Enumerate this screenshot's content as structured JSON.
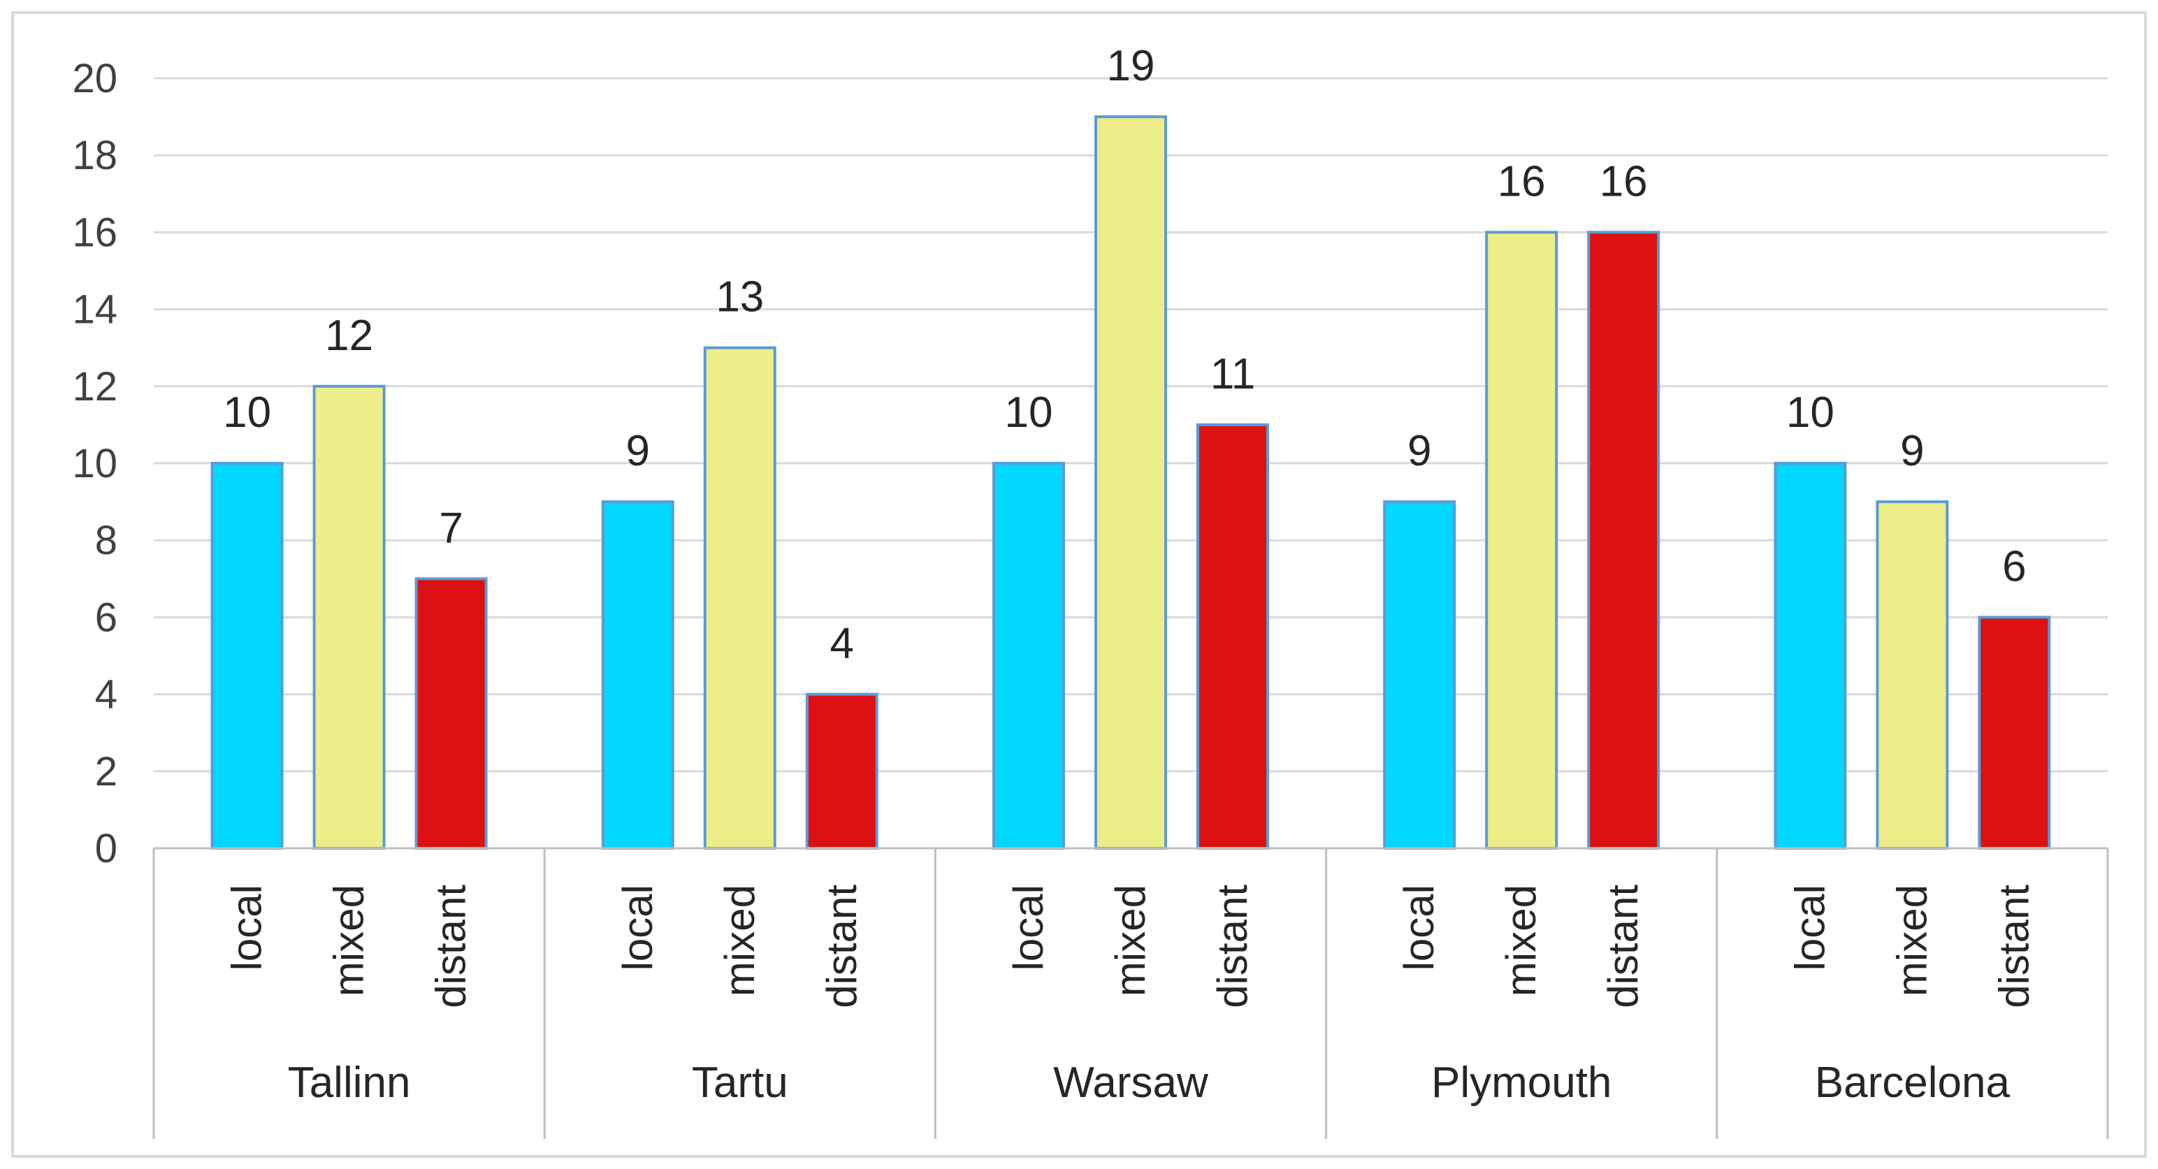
{
  "chart_data": {
    "type": "bar",
    "title": "",
    "xlabel": "",
    "ylabel": "",
    "ylim": [
      0,
      20
    ],
    "yticks": [
      0,
      2,
      4,
      6,
      8,
      10,
      12,
      14,
      16,
      18,
      20
    ],
    "grid": true,
    "legend": "none",
    "groups": [
      {
        "name": "Tallinn",
        "bars": [
          {
            "label": "local",
            "value": 10,
            "color": "#00d8ff"
          },
          {
            "label": "mixed",
            "value": 12,
            "color": "#eeee88"
          },
          {
            "label": "distant",
            "value": 7,
            "color": "#dd1111"
          }
        ]
      },
      {
        "name": "Tartu",
        "bars": [
          {
            "label": "local",
            "value": 9,
            "color": "#00d8ff"
          },
          {
            "label": "mixed",
            "value": 13,
            "color": "#eeee88"
          },
          {
            "label": "distant",
            "value": 4,
            "color": "#dd1111"
          }
        ]
      },
      {
        "name": "Warsaw",
        "bars": [
          {
            "label": "local",
            "value": 10,
            "color": "#00d8ff"
          },
          {
            "label": "mixed",
            "value": 19,
            "color": "#eeee88"
          },
          {
            "label": "distant",
            "value": 11,
            "color": "#dd1111"
          }
        ]
      },
      {
        "name": "Plymouth",
        "bars": [
          {
            "label": "local",
            "value": 9,
            "color": "#00d8ff"
          },
          {
            "label": "mixed",
            "value": 16,
            "color": "#eeee88"
          },
          {
            "label": "distant",
            "value": 16,
            "color": "#dd1111"
          }
        ]
      },
      {
        "name": "Barcelona",
        "bars": [
          {
            "label": "local",
            "value": 10,
            "color": "#00d8ff"
          },
          {
            "label": "mixed",
            "value": 9,
            "color": "#eeee88"
          },
          {
            "label": "distant",
            "value": 6,
            "color": "#dd1111"
          }
        ]
      }
    ],
    "colors": {
      "bar_outline": "#5b9bd5",
      "gridline": "#d9d9d9",
      "axis": "#bfbfbf"
    }
  }
}
